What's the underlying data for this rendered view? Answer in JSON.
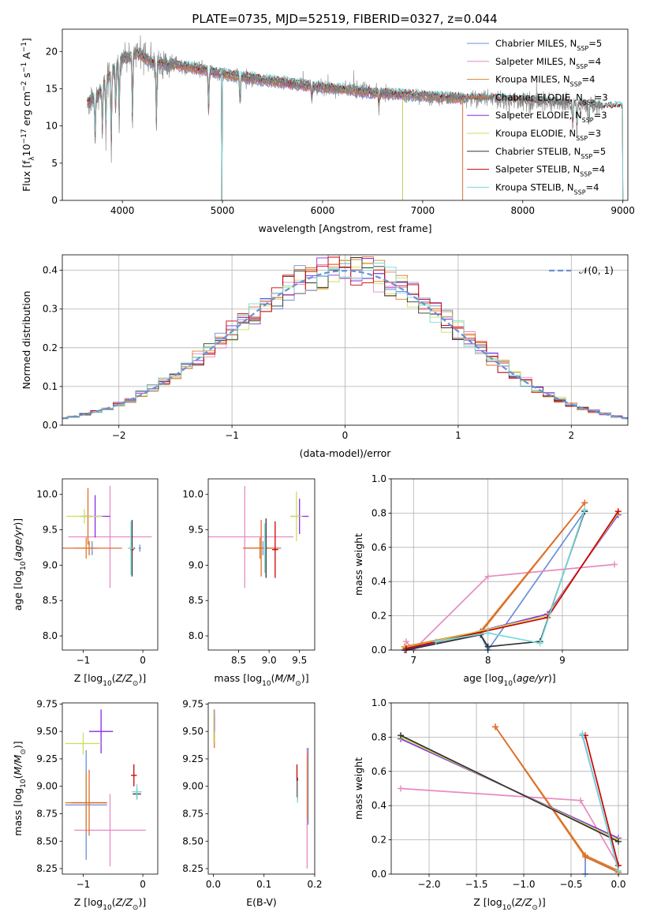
{
  "title": "PLATE=0735, MJD=52519, FIBERID=0327, z=0.044",
  "colors": {
    "Chabrier MILES": "#6a8fd9",
    "Salpeter MILES": "#e88ac2",
    "Kroupa MILES": "#d9822b",
    "Chabrier ELODIE": "#e06c2a",
    "Salpeter ELODIE": "#8a2be2",
    "Kroupa ELODIE": "#c8e05a",
    "Chabrier STELIB": "#333333",
    "Salpeter STELIB": "#cc0000",
    "Kroupa STELIB": "#78d8d8",
    "data": "#808080",
    "normal": "#6a8fd9"
  },
  "chart_data": [
    {
      "id": "spectrum",
      "type": "line",
      "xlabel": "wavelength [Angstrom, rest frame]",
      "ylabel": "Flux [f_λ 10^-17 erg cm^-2 s^-1 A^-1]",
      "xlim": [
        3400,
        9050
      ],
      "ylim": [
        0,
        23
      ],
      "xticks": [
        4000,
        5000,
        6000,
        7000,
        8000,
        9000
      ],
      "yticks": [
        0,
        5,
        10,
        15,
        20
      ],
      "legend_position": "top-right",
      "legend": [
        {
          "label": "Chabrier MILES, N",
          "sub": "SSP",
          "suffix": "=5"
        },
        {
          "label": "Salpeter MILES, N",
          "sub": "SSP",
          "suffix": "=4"
        },
        {
          "label": "Kroupa MILES, N",
          "sub": "SSP",
          "suffix": "=4"
        },
        {
          "label": "Chabrier ELODIE, N",
          "sub": "SSP",
          "suffix": "=3"
        },
        {
          "label": "Salpeter ELODIE, N",
          "sub": "SSP",
          "suffix": "=3"
        },
        {
          "label": "Kroupa ELODIE, N",
          "sub": "SSP",
          "suffix": "=3"
        },
        {
          "label": "Chabrier STELIB, N",
          "sub": "SSP",
          "suffix": "=5"
        },
        {
          "label": "Salpeter STELIB, N",
          "sub": "SSP",
          "suffix": "=4"
        },
        {
          "label": "Kroupa STELIB, N",
          "sub": "SSP",
          "suffix": "=4"
        }
      ],
      "continuum": [
        [
          3660,
          13.2
        ],
        [
          3750,
          14.0
        ],
        [
          3900,
          17.5
        ],
        [
          4000,
          19.0
        ],
        [
          4150,
          19.8
        ],
        [
          4300,
          18.5
        ],
        [
          4500,
          18.3
        ],
        [
          4700,
          17.8
        ],
        [
          5000,
          17.0
        ],
        [
          5300,
          16.4
        ],
        [
          5600,
          15.8
        ],
        [
          6000,
          15.2
        ],
        [
          6500,
          14.5
        ],
        [
          7000,
          14.0
        ],
        [
          7400,
          13.7
        ],
        [
          7800,
          13.5
        ],
        [
          8200,
          13.2
        ],
        [
          8600,
          12.8
        ],
        [
          8800,
          12.5
        ]
      ],
      "absorption_lines": [
        [
          3728,
          7.5
        ],
        [
          3800,
          8.5
        ],
        [
          3835,
          9.2
        ],
        [
          3889,
          6.0
        ],
        [
          3933,
          11.0
        ],
        [
          3968,
          10.0
        ],
        [
          4101,
          9.5
        ],
        [
          4340,
          9.3
        ],
        [
          4861,
          11.0
        ],
        [
          5175,
          13.0
        ],
        [
          5893,
          13.5
        ],
        [
          6563,
          12.5
        ],
        [
          8500,
          9.5
        ],
        [
          8542,
          9.0
        ],
        [
          8662,
          9.8
        ]
      ],
      "model_end": {
        "MILES": 7400,
        "ELODIE": 6800,
        "STELIB": 9000
      },
      "model_gap": [
        4990,
        4998
      ]
    },
    {
      "id": "residuals",
      "type": "line",
      "xlabel": "(data-model)/error",
      "ylabel": "Normed distribution",
      "xlim": [
        -2.5,
        2.5
      ],
      "ylim": [
        0,
        0.44
      ],
      "xticks": [
        -2,
        -1,
        0,
        1,
        2
      ],
      "yticks": [
        0.0,
        0.1,
        0.2,
        0.3,
        0.4
      ],
      "grid": true,
      "legend_label": "𝒩(0, 1)",
      "legend_position": "top-right",
      "bin_width": 0.1
    },
    {
      "id": "age-vs-Z",
      "type": "scatter",
      "xlabel": "Z [log10(Z/Z⊙)]",
      "ylabel": "age  [log10(age/yr)]",
      "xlim": [
        -1.35,
        0.25
      ],
      "ylim": [
        7.8,
        10.22
      ],
      "xticks": [
        -1,
        0
      ],
      "yticks": [
        8.0,
        8.5,
        9.0,
        9.5,
        10.0
      ],
      "points": [
        {
          "model": "Chabrier MILES",
          "x": -0.05,
          "y": 9.24,
          "xerr": 0.02,
          "yerr": 0.05
        },
        {
          "model": "Chabrier MILES",
          "x": -0.85,
          "y": 9.24,
          "xerr": 0.05,
          "yerr": 0.1
        },
        {
          "model": "Salpeter MILES",
          "x": -0.55,
          "y": 9.4,
          "xerr": 0.7,
          "yerr": 0.72
        },
        {
          "model": "Kroupa MILES",
          "x": -0.95,
          "y": 9.24,
          "xerr": 0.2,
          "yerr": 0.15
        },
        {
          "model": "Chabrier ELODIE",
          "x": -0.9,
          "y": 9.24,
          "xerr": 0.55,
          "yerr": 0.1
        },
        {
          "model": "Chabrier ELODIE",
          "x": -0.92,
          "y": 9.69,
          "xerr": 0.05,
          "yerr": 0.4
        },
        {
          "model": "Salpeter ELODIE",
          "x": -0.8,
          "y": 9.69,
          "xerr": 0.25,
          "yerr": 0.3
        },
        {
          "model": "Kroupa ELODIE",
          "x": -0.98,
          "y": 9.69,
          "xerr": 0.3,
          "yerr": 0.1
        },
        {
          "model": "Chabrier STELIB",
          "x": -0.18,
          "y": 9.24,
          "xerr": 0.05,
          "yerr": 0.4
        },
        {
          "model": "Salpeter STELIB",
          "x": -0.18,
          "y": 9.22,
          "xerr": 0.03,
          "yerr": 0.02
        },
        {
          "model": "Kroupa STELIB",
          "x": -0.2,
          "y": 9.24,
          "xerr": 0.05,
          "yerr": 0.38
        }
      ]
    },
    {
      "id": "age-vs-mass",
      "type": "scatter",
      "xlabel": "mass [log10(M/M⊙)]",
      "ylabel": "",
      "xlim": [
        8.0,
        9.75
      ],
      "ylim": [
        7.8,
        10.22
      ],
      "xticks": [
        8.5,
        9.0,
        9.5
      ],
      "yticks": [
        8.0,
        8.5,
        9.0,
        9.5,
        10.0
      ],
      "points": [
        {
          "model": "Chabrier MILES",
          "x": 8.9,
          "y": 9.24,
          "xerr": 0.3,
          "yerr": 0.1
        },
        {
          "model": "Salpeter MILES",
          "x": 8.6,
          "y": 9.4,
          "xerr": 0.8,
          "yerr": 0.72
        },
        {
          "model": "Kroupa MILES",
          "x": 8.85,
          "y": 9.24,
          "xerr": 0.2,
          "yerr": 0.15
        },
        {
          "model": "Chabrier ELODIE",
          "x": 8.87,
          "y": 9.24,
          "xerr": 0.3,
          "yerr": 0.4
        },
        {
          "model": "Salpeter ELODIE",
          "x": 9.5,
          "y": 9.69,
          "xerr": 0.15,
          "yerr": 0.25
        },
        {
          "model": "Kroupa ELODIE",
          "x": 9.45,
          "y": 9.69,
          "xerr": 0.1,
          "yerr": 0.35
        },
        {
          "model": "Chabrier STELIB",
          "x": 8.95,
          "y": 9.24,
          "xerr": 0.02,
          "yerr": 0.42
        },
        {
          "model": "Salpeter STELIB",
          "x": 9.1,
          "y": 9.22,
          "xerr": 0.05,
          "yerr": 0.4
        },
        {
          "model": "Kroupa STELIB",
          "x": 8.93,
          "y": 9.24,
          "xerr": 0.02,
          "yerr": 0.35
        }
      ]
    },
    {
      "id": "weight-vs-age",
      "type": "line",
      "xlabel": "age  [log10(age/yr)]",
      "ylabel": "mass weight",
      "xlim": [
        6.7,
        9.88
      ],
      "ylim": [
        0,
        1.0
      ],
      "xticks": [
        7,
        8,
        9
      ],
      "yticks": [
        0.0,
        0.2,
        0.4,
        0.6,
        0.8,
        1.0
      ],
      "grid": true,
      "series": [
        {
          "model": "Chabrier MILES",
          "points": [
            [
              6.88,
              0.0
            ],
            [
              7.9,
              0.09
            ],
            [
              8.0,
              0.0
            ],
            [
              9.3,
              0.81
            ]
          ]
        },
        {
          "model": "Salpeter MILES",
          "points": [
            [
              6.9,
              0.05
            ],
            [
              7.0,
              0.0
            ],
            [
              8.0,
              0.43
            ],
            [
              9.7,
              0.5
            ]
          ]
        },
        {
          "model": "Kroupa MILES",
          "points": [
            [
              6.88,
              0.02
            ],
            [
              7.9,
              0.11
            ],
            [
              9.3,
              0.86
            ]
          ]
        },
        {
          "model": "Chabrier ELODIE",
          "points": [
            [
              6.88,
              0.01
            ],
            [
              7.9,
              0.1
            ],
            [
              9.3,
              0.86
            ]
          ]
        },
        {
          "model": "Salpeter ELODIE",
          "points": [
            [
              6.88,
              0.0
            ],
            [
              8.8,
              0.21
            ],
            [
              9.75,
              0.79
            ]
          ]
        },
        {
          "model": "Kroupa ELODIE",
          "points": [
            [
              6.88,
              0.01
            ],
            [
              8.8,
              0.2
            ],
            [
              9.75,
              0.8
            ]
          ]
        },
        {
          "model": "Chabrier STELIB",
          "points": [
            [
              6.9,
              0.0
            ],
            [
              7.9,
              0.09
            ],
            [
              8.0,
              0.02
            ],
            [
              8.7,
              0.05
            ],
            [
              9.3,
              0.81
            ]
          ]
        },
        {
          "model": "Salpeter STELIB",
          "points": [
            [
              6.9,
              0.01
            ],
            [
              8.8,
              0.19
            ],
            [
              9.75,
              0.81
            ]
          ]
        },
        {
          "model": "Kroupa STELIB",
          "points": [
            [
              7.3,
              0.05
            ],
            [
              8.0,
              0.1
            ],
            [
              8.7,
              0.04
            ],
            [
              9.3,
              0.82
            ]
          ]
        }
      ]
    },
    {
      "id": "mass-vs-Z",
      "type": "scatter",
      "xlabel": "Z [log10(Z/Z⊙)]",
      "ylabel": "mass [log10(M/M⊙)]",
      "xlim": [
        -1.35,
        0.25
      ],
      "ylim": [
        8.2,
        9.76
      ],
      "xticks": [
        -1,
        0
      ],
      "yticks": [
        8.25,
        8.5,
        8.75,
        9.0,
        9.25,
        9.5,
        9.75
      ],
      "points": [
        {
          "model": "Chabrier MILES",
          "x": -0.95,
          "y": 8.83,
          "xerr": 0.35,
          "yerr": 0.5
        },
        {
          "model": "Salpeter MILES",
          "x": -0.55,
          "y": 8.6,
          "xerr": 0.6,
          "yerr": 0.33
        },
        {
          "model": "Kroupa MILES",
          "x": -0.95,
          "y": 8.85,
          "xerr": 0.35,
          "yerr": 0.27
        },
        {
          "model": "Chabrier ELODIE",
          "x": -0.9,
          "y": 8.85,
          "xerr": 0.3,
          "yerr": 0.3
        },
        {
          "model": "Salpeter ELODIE",
          "x": -0.7,
          "y": 9.5,
          "xerr": 0.2,
          "yerr": 0.2
        },
        {
          "model": "Kroupa ELODIE",
          "x": -1.0,
          "y": 9.39,
          "xerr": 0.3,
          "yerr": 0.1
        },
        {
          "model": "Chabrier STELIB",
          "x": -0.1,
          "y": 8.93,
          "xerr": 0.07,
          "yerr": 0.05
        },
        {
          "model": "Salpeter STELIB",
          "x": -0.15,
          "y": 9.1,
          "xerr": 0.05,
          "yerr": 0.1
        },
        {
          "model": "Kroupa STELIB",
          "x": -0.1,
          "y": 8.95,
          "xerr": 0.08,
          "yerr": 0.07
        }
      ]
    },
    {
      "id": "mass-vs-EBV",
      "type": "scatter",
      "xlabel": "E(B-V)",
      "ylabel": "",
      "xlim": [
        -0.01,
        0.2
      ],
      "ylim": [
        8.2,
        9.76
      ],
      "xticks": [
        0.0,
        0.1,
        0.2
      ],
      "yticks": [
        8.25,
        8.5,
        8.75,
        9.0,
        9.25,
        9.5,
        9.75
      ],
      "points": [
        {
          "model": "Chabrier MILES",
          "x": 0.187,
          "y": 9.0,
          "xerr": 0.0,
          "yerr": 0.35
        },
        {
          "model": "Salpeter MILES",
          "x": 0.185,
          "y": 8.8,
          "xerr": 0.0,
          "yerr": 0.55
        },
        {
          "model": "Kroupa MILES",
          "x": 0.186,
          "y": 9.0,
          "xerr": 0.0,
          "yerr": 0.3
        },
        {
          "model": "Chabrier ELODIE",
          "x": 0.002,
          "y": 9.5,
          "xerr": 0.0,
          "yerr": 0.15
        },
        {
          "model": "Salpeter ELODIE",
          "x": 0.002,
          "y": 9.6,
          "xerr": 0.0,
          "yerr": 0.1
        },
        {
          "model": "Kroupa ELODIE",
          "x": 0.001,
          "y": 9.55,
          "xerr": 0.0,
          "yerr": 0.15
        },
        {
          "model": "Chabrier STELIB",
          "x": 0.166,
          "y": 8.98,
          "xerr": 0.0,
          "yerr": 0.1
        },
        {
          "model": "Salpeter STELIB",
          "x": 0.165,
          "y": 9.05,
          "xerr": 0.0,
          "yerr": 0.15
        },
        {
          "model": "Kroupa STELIB",
          "x": 0.166,
          "y": 8.95,
          "xerr": 0.0,
          "yerr": 0.1
        }
      ]
    },
    {
      "id": "weight-vs-Z",
      "type": "line",
      "xlabel": "Z [log10(Z/Z⊙)]",
      "ylabel": "mass weight",
      "xlim": [
        -2.4,
        0.1
      ],
      "ylim": [
        0,
        1.0
      ],
      "xticks": [
        -2.0,
        -1.5,
        -1.0,
        -0.5,
        0.0
      ],
      "yticks": [
        0.0,
        0.2,
        0.4,
        0.6,
        0.8,
        1.0
      ],
      "grid": true,
      "series": [
        {
          "model": "Chabrier MILES",
          "points": [
            [
              -0.35,
              0.0
            ],
            [
              -0.35,
              0.1
            ],
            [
              0.0,
              0.02
            ],
            [
              -0.38,
              0.81
            ]
          ]
        },
        {
          "model": "Salpeter MILES",
          "points": [
            [
              -2.3,
              0.5
            ],
            [
              -0.4,
              0.43
            ],
            [
              0.0,
              0.05
            ]
          ]
        },
        {
          "model": "Kroupa MILES",
          "points": [
            [
              -1.3,
              0.86
            ],
            [
              -0.35,
              0.11
            ],
            [
              0.0,
              0.02
            ]
          ]
        },
        {
          "model": "Chabrier ELODIE",
          "points": [
            [
              -1.3,
              0.86
            ],
            [
              -0.35,
              0.1
            ],
            [
              0.0,
              0.01
            ]
          ]
        },
        {
          "model": "Salpeter ELODIE",
          "points": [
            [
              -2.3,
              0.79
            ],
            [
              0.0,
              0.21
            ]
          ]
        },
        {
          "model": "Kroupa ELODIE",
          "points": [
            [
              -2.3,
              0.8
            ],
            [
              0.0,
              0.2
            ]
          ]
        },
        {
          "model": "Chabrier STELIB",
          "points": [
            [
              -2.3,
              0.81
            ],
            [
              0.0,
              0.19
            ]
          ]
        },
        {
          "model": "Salpeter STELIB",
          "points": [
            [
              -0.35,
              0.81
            ],
            [
              0.0,
              0.05
            ]
          ]
        },
        {
          "model": "Kroupa STELIB",
          "points": [
            [
              -0.38,
              0.82
            ],
            [
              0.0,
              0.02
            ]
          ]
        }
      ]
    }
  ]
}
